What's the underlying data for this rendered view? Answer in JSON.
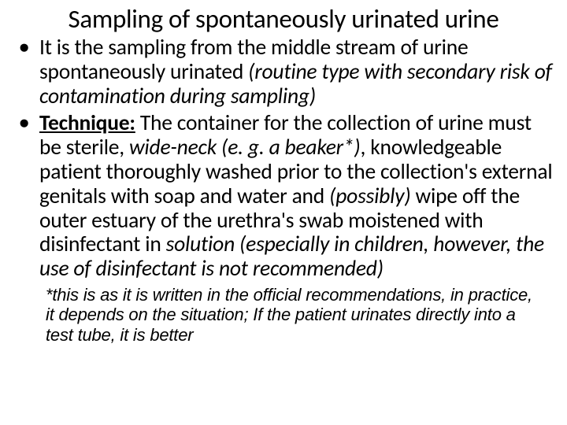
{
  "typography": {
    "title_fontsize": 33,
    "body_fontsize": 27.5,
    "footnote_fontsize": 22,
    "font_family": "Calibri",
    "footnote_font_family": "Arial",
    "text_color": "#000000",
    "background_color": "#ffffff"
  },
  "title": "Sampling of spontaneously urinated urine",
  "bullets": [
    {
      "prefix": "It is the sampling from the middle stream of urine spontaneously urinated ",
      "italic1": "(routine type with secondary risk of contamination during sampling)"
    },
    {
      "lead_bold_underline": "Technique:",
      "part1": " The container for the collection of urine must be sterile, ",
      "italic1": "wide-neck (e. g. a beaker*)",
      "part2": ", knowledgeable patient thoroughly washed prior to the collection's external genitals with soap and water and ",
      "italic2": "(possibly)",
      "part3": " wipe off the outer estuary of the urethra's swab moistened with disinfectant in ",
      "italic3": "solution (especially in children, however, the use of disinfectant is not recommended)"
    }
  ],
  "footnote": "*this is as it is written in the official recommendations, in practice, it depends on the situation; If the patient urinates directly into a test tube, it is better"
}
